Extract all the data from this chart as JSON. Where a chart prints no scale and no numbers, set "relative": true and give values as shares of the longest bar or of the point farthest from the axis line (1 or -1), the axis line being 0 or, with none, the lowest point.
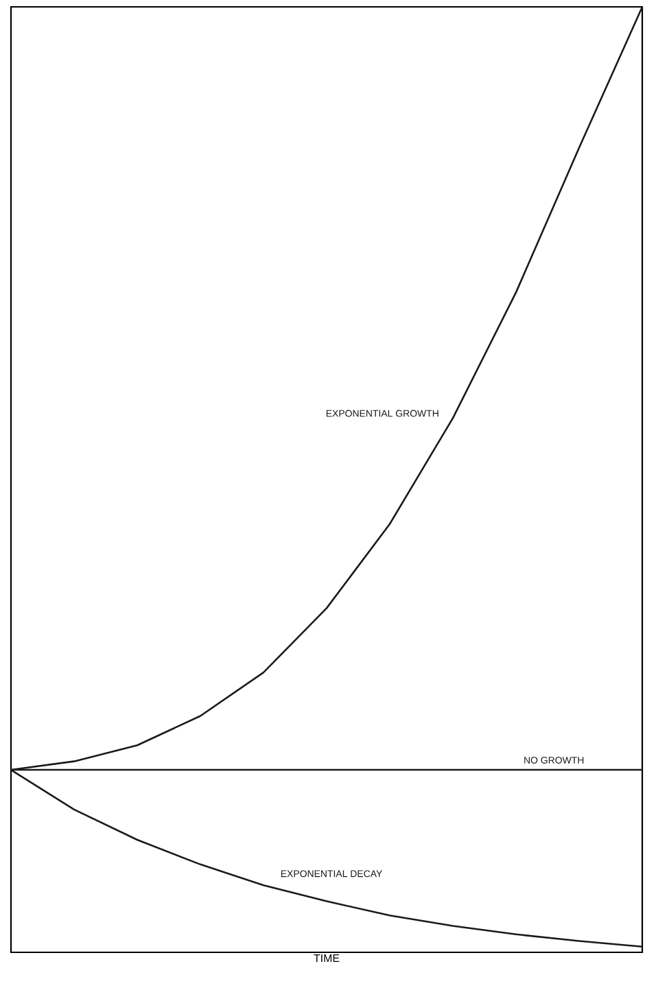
{
  "chart_data": {
    "type": "line",
    "relative": true,
    "xlabel": "TIME",
    "categories": [
      null,
      null,
      null,
      null,
      null,
      null,
      null,
      null,
      null,
      null,
      null
    ],
    "series": [
      {
        "name": "EXPONENTIAL GROWTH",
        "color": "#1a1a1a",
        "values": [
          0.193,
          0.202,
          0.219,
          0.25,
          0.296,
          0.364,
          0.453,
          0.565,
          0.698,
          0.851,
          1.0
        ]
      },
      {
        "name": "NO GROWTH",
        "color": "#1a1a1a",
        "values": [
          0.193,
          0.193,
          0.193,
          0.193,
          0.193,
          0.193,
          0.193,
          0.193,
          0.193,
          0.193,
          0.193
        ]
      },
      {
        "name": "EXPONENTIAL DECAY",
        "color": "#1a1a1a",
        "values": [
          0.193,
          0.151,
          0.119,
          0.093,
          0.071,
          0.054,
          0.039,
          0.028,
          0.019,
          0.012,
          0.006
        ]
      }
    ],
    "marker": "none",
    "line_style": "solid",
    "legend": false
  }
}
